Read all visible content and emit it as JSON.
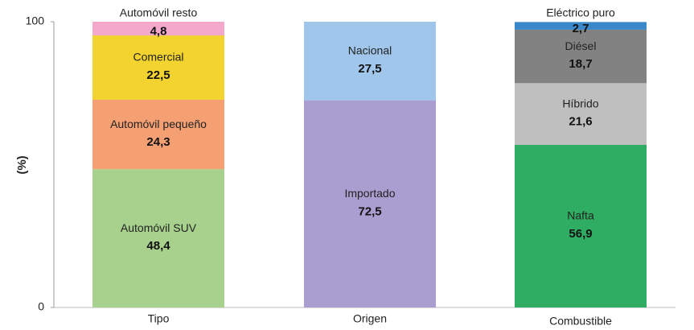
{
  "chart_data": {
    "type": "stacked-bar",
    "ylabel": "(%)",
    "ylim": [
      0,
      100
    ],
    "yticks": [
      0,
      100
    ],
    "bars": [
      {
        "category": "Tipo",
        "segments": [
          {
            "name": "Automóvil SUV",
            "value": 48.4,
            "value_label": "48,4",
            "color": "#a9d18e"
          },
          {
            "name": "Automóvil pequeño",
            "value": 24.3,
            "value_label": "24,3",
            "color": "#f4a073"
          },
          {
            "name": "Comercial",
            "value": 22.5,
            "value_label": "22,5",
            "color": "#f2d330"
          },
          {
            "name": "Automóvil resto",
            "value": 4.8,
            "value_label": "4,8",
            "color": "#f4a9cc"
          }
        ]
      },
      {
        "category": "Origen",
        "segments": [
          {
            "name": "Importado",
            "value": 72.5,
            "value_label": "72,5",
            "color": "#aa9dd0"
          },
          {
            "name": "Nacional",
            "value": 27.5,
            "value_label": "27,5",
            "color": "#a0c7eb"
          }
        ]
      },
      {
        "category": "Combustible",
        "segments": [
          {
            "name": "Nafta",
            "value": 56.9,
            "value_label": "56,9",
            "color": "#2fad63"
          },
          {
            "name": "Híbrido",
            "value": 21.6,
            "value_label": "21,6",
            "color": "#bfbfbf"
          },
          {
            "name": "Diésel",
            "value": 18.7,
            "value_label": "18,7",
            "color": "#828282"
          },
          {
            "name": "Eléctrico puro",
            "value": 2.7,
            "value_label": "2,7",
            "color": "#3a87c9"
          }
        ]
      }
    ]
  }
}
